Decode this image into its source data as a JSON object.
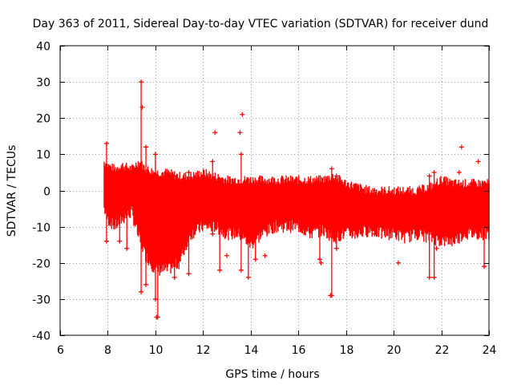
{
  "chart_data": {
    "type": "scatter",
    "title": "Day 363 of 2011, Sidereal Day-to-day VTEC variation (SDTVAR) for receiver dund",
    "xlabel": "GPS time / hours",
    "ylabel": "SDTVAR / TECUs",
    "xlim": [
      6,
      24
    ],
    "ylim": [
      -40,
      40
    ],
    "x_ticks": [
      6,
      8,
      10,
      12,
      14,
      16,
      18,
      20,
      22,
      24
    ],
    "y_ticks": [
      -40,
      -30,
      -20,
      -10,
      0,
      10,
      20,
      30,
      40
    ],
    "grid": true,
    "marker": "+",
    "color": "#ff0000",
    "series": [
      {
        "name": "SDTVAR",
        "band": {
          "x": [
            7.85,
            8.0,
            8.3,
            8.6,
            9.0,
            9.3,
            9.6,
            10.0,
            10.5,
            11.0,
            11.5,
            12.0,
            12.5,
            13.0,
            13.5,
            14.0,
            14.5,
            15.0,
            15.5,
            16.0,
            16.5,
            17.0,
            17.5,
            18.0,
            18.5,
            19.0,
            19.5,
            20.0,
            20.5,
            21.0,
            21.5,
            22.0,
            22.5,
            23.0,
            23.5,
            24.0
          ],
          "high": [
            8,
            7,
            6,
            7,
            6,
            8,
            6,
            5,
            5,
            4,
            4,
            5,
            4,
            3,
            3,
            3,
            3,
            3,
            3,
            3,
            3,
            3,
            4,
            2,
            1,
            0,
            0,
            0,
            0,
            0,
            1,
            3,
            2,
            2,
            2,
            2
          ],
          "low": [
            -5,
            -8,
            -10,
            -8,
            -6,
            -13,
            -18,
            -22,
            -22,
            -20,
            -12,
            -10,
            -10,
            -12,
            -12,
            -15,
            -12,
            -10,
            -10,
            -10,
            -12,
            -11,
            -13,
            -12,
            -12,
            -11,
            -12,
            -12,
            -13,
            -12,
            -13,
            -14,
            -14,
            -12,
            -12,
            -12
          ]
        },
        "spikes": [
          {
            "x": 7.95,
            "min": -14,
            "max": 13
          },
          {
            "x": 8.5,
            "min": -14,
            "max": 5
          },
          {
            "x": 8.8,
            "min": -16,
            "max": 6
          },
          {
            "x": 9.4,
            "min": -28,
            "max": 30
          },
          {
            "x": 9.6,
            "min": -26,
            "max": 12
          },
          {
            "x": 10.0,
            "min": -30,
            "max": 10
          },
          {
            "x": 10.1,
            "min": -35,
            "max": -12
          },
          {
            "x": 10.8,
            "min": -24,
            "max": 4
          },
          {
            "x": 11.4,
            "min": -23,
            "max": 5
          },
          {
            "x": 12.4,
            "min": -12,
            "max": 8
          },
          {
            "x": 12.7,
            "min": -22,
            "max": 3
          },
          {
            "x": 13.6,
            "min": -22,
            "max": 10
          },
          {
            "x": 13.9,
            "min": -24,
            "max": 3
          },
          {
            "x": 14.2,
            "min": -19,
            "max": 2
          },
          {
            "x": 16.9,
            "min": -19,
            "max": 2
          },
          {
            "x": 17.4,
            "min": -29,
            "max": 6
          },
          {
            "x": 17.6,
            "min": -16,
            "max": 4
          },
          {
            "x": 19.2,
            "min": -12,
            "max": 0
          },
          {
            "x": 21.5,
            "min": -24,
            "max": 4
          },
          {
            "x": 21.7,
            "min": -24,
            "max": 5
          },
          {
            "x": 23.8,
            "min": -21,
            "max": 2
          }
        ],
        "outliers": [
          {
            "x": 12.5,
            "y": 16
          },
          {
            "x": 13.55,
            "y": 16
          },
          {
            "x": 13.65,
            "y": 21
          },
          {
            "x": 9.45,
            "y": 23
          },
          {
            "x": 10.05,
            "y": -35
          },
          {
            "x": 16.95,
            "y": -20
          },
          {
            "x": 20.2,
            "y": -20
          },
          {
            "x": 22.85,
            "y": 12
          },
          {
            "x": 22.75,
            "y": 5
          },
          {
            "x": 23.55,
            "y": 8
          },
          {
            "x": 21.8,
            "y": -16
          },
          {
            "x": 17.35,
            "y": -29
          },
          {
            "x": 13.0,
            "y": -18
          },
          {
            "x": 14.6,
            "y": -18
          }
        ]
      }
    ]
  }
}
